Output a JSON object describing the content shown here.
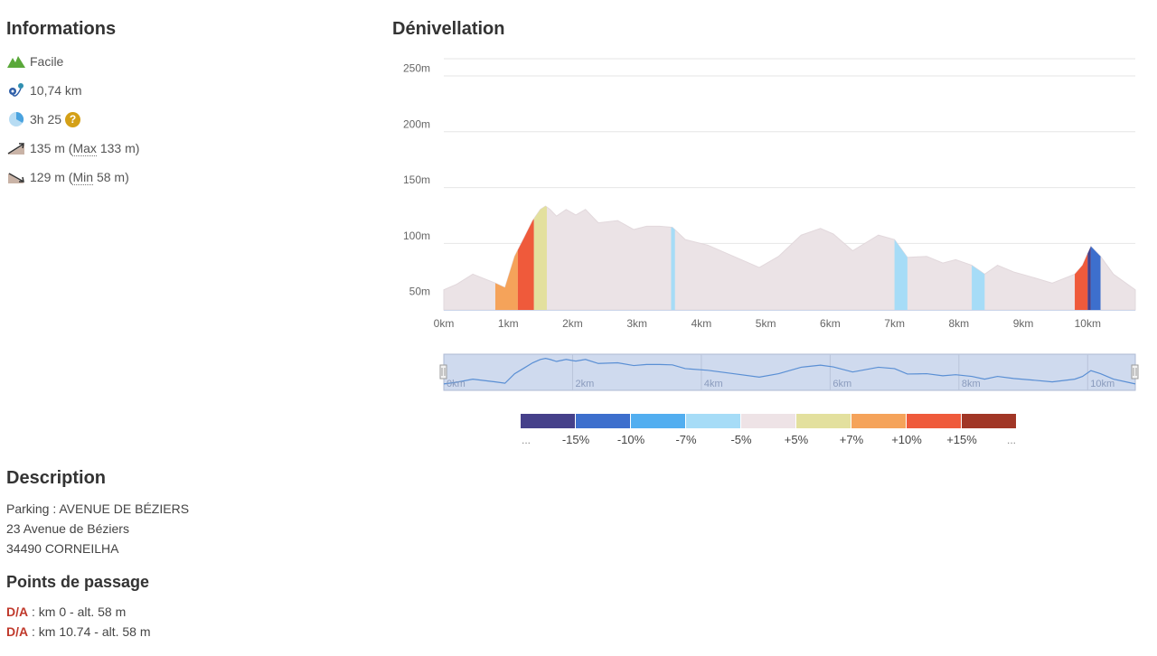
{
  "info": {
    "title": "Informations",
    "difficulty": "Facile",
    "distance": "10,74 km",
    "duration": "3h 25",
    "ascent": "135 m",
    "ascent_max_label": "Max",
    "ascent_max_value": "133 m",
    "descent": "129 m",
    "descent_min_label": "Min",
    "descent_min_value": "58 m",
    "icons": [
      "mountain-icon",
      "route-distance-icon",
      "clock-icon",
      "ascent-icon",
      "descent-icon",
      "help-icon"
    ]
  },
  "description": {
    "title": "Description",
    "lines": [
      "Parking : AVENUE DE BÉZIERS",
      "23 Avenue de Béziers",
      "34490 CORNEILHA"
    ]
  },
  "waypoints": {
    "title": "Points de passage",
    "items": [
      {
        "tag": "D/A",
        "text": " : km 0 - alt. 58 m"
      },
      {
        "tag": "D/A",
        "text": " : km 10.74 - alt. 58 m"
      }
    ]
  },
  "chart_data": {
    "type": "area",
    "title": "Dénivellation",
    "y_unit": "m",
    "x_unit": "km",
    "xlim": [
      0,
      10.74
    ],
    "ylim": [
      40,
      265
    ],
    "y_ticks": [
      50,
      100,
      150,
      200,
      250
    ],
    "y_tick_labels": [
      "50m",
      "100m",
      "150m",
      "200m",
      "250m"
    ],
    "x_ticks": [
      0,
      1,
      2,
      3,
      4,
      5,
      6,
      7,
      8,
      9,
      10
    ],
    "x_tick_labels": [
      "0km",
      "1km",
      "2km",
      "3km",
      "4km",
      "5km",
      "6km",
      "7km",
      "8km",
      "9km",
      "10km"
    ],
    "grid": true,
    "x": [
      0,
      0.2,
      0.45,
      0.8,
      0.95,
      1.1,
      1.25,
      1.38,
      1.5,
      1.58,
      1.65,
      1.75,
      1.9,
      2.05,
      2.2,
      2.4,
      2.7,
      2.95,
      3.15,
      3.35,
      3.55,
      3.75,
      4.1,
      4.5,
      4.9,
      5.2,
      5.55,
      5.85,
      6.05,
      6.35,
      6.75,
      7.0,
      7.2,
      7.5,
      7.75,
      7.95,
      8.2,
      8.4,
      8.6,
      8.85,
      9.1,
      9.45,
      9.8,
      9.92,
      10.05,
      10.2,
      10.4,
      10.74
    ],
    "y": [
      58,
      63,
      72,
      64,
      60,
      88,
      105,
      120,
      130,
      133,
      130,
      124,
      130,
      125,
      130,
      118,
      120,
      112,
      115,
      115,
      114,
      103,
      98,
      88,
      78,
      88,
      107,
      113,
      108,
      93,
      107,
      103,
      87,
      88,
      82,
      85,
      80,
      72,
      80,
      74,
      70,
      64,
      72,
      80,
      97,
      88,
      72,
      58
    ],
    "slope_segments": [
      {
        "from": 0.8,
        "to": 1.15,
        "slope": "+10%"
      },
      {
        "from": 1.15,
        "to": 1.4,
        "slope": "+15%"
      },
      {
        "from": 1.4,
        "to": 1.6,
        "slope": "+7%"
      },
      {
        "from": 3.53,
        "to": 3.59,
        "slope": "-7%"
      },
      {
        "from": 7.0,
        "to": 7.2,
        "slope": "-7%"
      },
      {
        "from": 8.2,
        "to": 8.4,
        "slope": "-7%"
      },
      {
        "from": 9.8,
        "to": 10.0,
        "slope": "+15%"
      },
      {
        "from": 10.0,
        "to": 10.05,
        "slope": "-15%"
      },
      {
        "from": 10.05,
        "to": 10.2,
        "slope": "-10%"
      }
    ],
    "navigator_labels": [
      "0km",
      "2km",
      "4km",
      "6km",
      "8km",
      "10km"
    ],
    "legend": {
      "edge_labels": [
        "...",
        "..."
      ],
      "labels": [
        "-15%",
        "-10%",
        "-7%",
        "-5%",
        "+5%",
        "+7%",
        "+10%",
        "+15%"
      ],
      "colors": [
        "#45408a",
        "#3d6fcd",
        "#52aef0",
        "#a6dcf7",
        "#eee3e6",
        "#e3e09e",
        "#f5a35a",
        "#ef5a3b",
        "#a13626"
      ]
    },
    "colors": {
      "base_fill": "#ebe3e6",
      "base_stroke": "#e2d8dc",
      "navigator_fill": "#cfdaee",
      "navigator_line": "#5a8fd4",
      "slopes": {
        "+15%": "#ef5a3b",
        "+10%": "#f5a35a",
        "+7%": "#e3e09e",
        "-7%": "#a6dcf7",
        "-10%": "#3d6fcd",
        "-15%": "#45408a"
      }
    }
  }
}
